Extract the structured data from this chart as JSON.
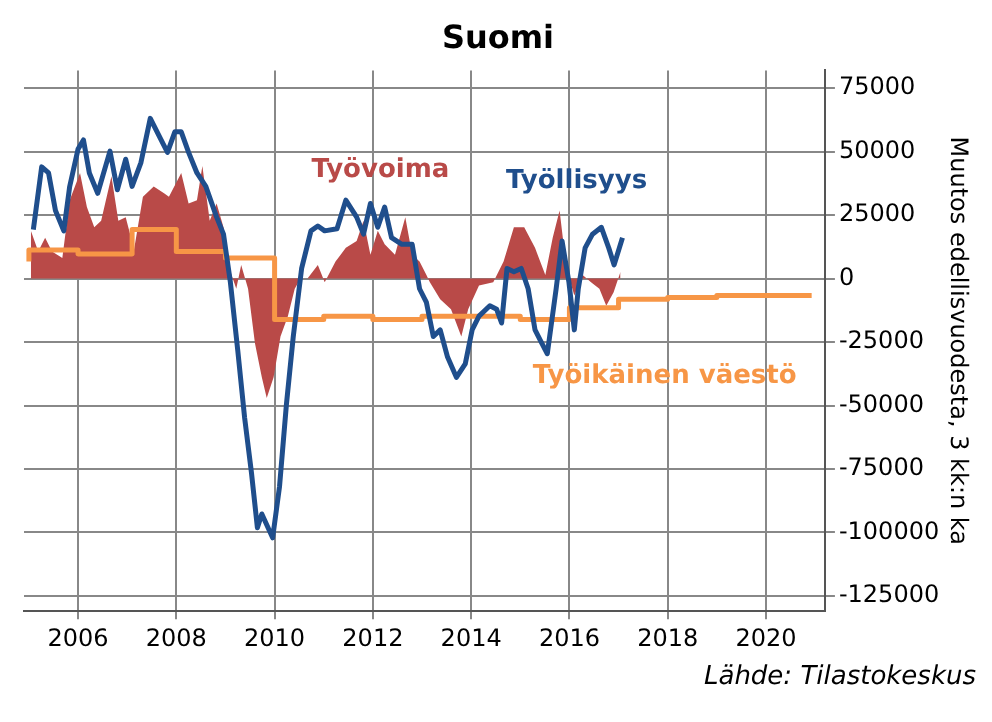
{
  "chart_data": {
    "type": "line",
    "title": "Suomi",
    "ylabel": "Muutos edellisvuodesta, 3 kk:n ka",
    "annotations": [
      "Lähde: Tilastokeskus"
    ],
    "xlim": [
      2004.9,
      2021.2
    ],
    "xticks": [
      2006,
      2008,
      2010,
      2012,
      2014,
      2016,
      2018,
      2020
    ],
    "ylim": [
      -131000,
      82000
    ],
    "yticks": [
      75000,
      50000,
      25000,
      0,
      -25000,
      -50000,
      -75000,
      -100000,
      -125000
    ],
    "grid": true,
    "legend": false,
    "marker": "none",
    "series": [
      {
        "name": "Työvoima",
        "type": "area",
        "color": "#b94a48",
        "x": [
          2005.04,
          2005.19,
          2005.33,
          2005.47,
          2005.68,
          2005.83,
          2006.04,
          2006.18,
          2006.33,
          2006.47,
          2006.68,
          2006.82,
          2006.97,
          2007.14,
          2007.32,
          2007.54,
          2007.75,
          2007.85,
          2008.1,
          2008.25,
          2008.42,
          2008.53,
          2008.68,
          2008.82,
          2008.96,
          2009.08,
          2009.22,
          2009.32,
          2009.46,
          2009.6,
          2009.74,
          2009.84,
          2009.98,
          2010.12,
          2010.27,
          2010.41,
          2010.53,
          2010.67,
          2010.88,
          2011.02,
          2011.24,
          2011.45,
          2011.67,
          2011.81,
          2011.95,
          2012.1,
          2012.24,
          2012.45,
          2012.66,
          2012.8,
          2012.95,
          2013.09,
          2013.16,
          2013.37,
          2013.59,
          2013.8,
          2013.94,
          2014.16,
          2014.45,
          2014.66,
          2014.87,
          2015.08,
          2015.3,
          2015.51,
          2015.66,
          2015.8,
          2015.94,
          2016.1,
          2016.27,
          2016.44,
          2016.61,
          2016.75,
          2016.9,
          2017.04
        ],
        "values": [
          18800,
          10700,
          16100,
          10700,
          8100,
          30900,
          41600,
          28200,
          20200,
          22800,
          40300,
          22800,
          24200,
          11500,
          32200,
          36300,
          33600,
          32200,
          41600,
          29600,
          30900,
          44300,
          22800,
          29600,
          20200,
          4000,
          -4000,
          5400,
          -4000,
          -25500,
          -38900,
          -47000,
          -38900,
          -22800,
          -14800,
          -4000,
          0,
          0,
          5400,
          -1400,
          6700,
          12100,
          14800,
          22800,
          9400,
          18800,
          13500,
          9400,
          24200,
          9400,
          6700,
          1400,
          -1400,
          -8100,
          -12100,
          -22800,
          -12100,
          -2700,
          -1400,
          6700,
          20200,
          20200,
          12100,
          1400,
          16100,
          26800,
          4000,
          -6700,
          1400,
          -1400,
          -4000,
          -10700,
          -5400,
          2700
        ]
      },
      {
        "name": "Työikäinen väestö",
        "type": "step",
        "color": "#f79646",
        "x": [
          2005.0,
          2006.0,
          2007.1,
          2008.0,
          2009.0,
          2010.0,
          2011.0,
          2012.0,
          2013.0,
          2015.0,
          2016.0,
          2017.0,
          2018.0,
          2019.0,
          2020.0,
          2020.93
        ],
        "values": [
          6700,
          11300,
          9700,
          19300,
          10700,
          8100,
          -16100,
          -14800,
          -16100,
          -14800,
          -16100,
          -11500,
          -8100,
          -7400,
          -6700,
          -6700
        ]
      },
      {
        "name": "Työllisyys",
        "type": "line",
        "color": "#1f4e8c",
        "x": [
          2005.09,
          2005.26,
          2005.4,
          2005.54,
          2005.71,
          2005.83,
          2006.0,
          2006.11,
          2006.23,
          2006.4,
          2006.65,
          2006.8,
          2006.97,
          2007.1,
          2007.28,
          2007.47,
          2007.68,
          2007.82,
          2007.97,
          2008.1,
          2008.25,
          2008.42,
          2008.6,
          2008.82,
          2008.96,
          2009.1,
          2009.25,
          2009.39,
          2009.53,
          2009.65,
          2009.74,
          2009.96,
          2010.1,
          2010.24,
          2010.38,
          2010.55,
          2010.74,
          2010.88,
          2011.02,
          2011.27,
          2011.45,
          2011.67,
          2011.81,
          2011.95,
          2012.1,
          2012.24,
          2012.38,
          2012.59,
          2012.8,
          2012.95,
          2013.09,
          2013.23,
          2013.37,
          2013.52,
          2013.7,
          2013.88,
          2014.02,
          2014.16,
          2014.38,
          2014.52,
          2014.62,
          2014.73,
          2014.87,
          2015.02,
          2015.16,
          2015.3,
          2015.44,
          2015.55,
          2015.73,
          2015.85,
          2015.99,
          2016.1,
          2016.18,
          2016.32,
          2016.47,
          2016.65,
          2016.8,
          2016.91,
          2017.08
        ],
        "values": [
          19300,
          44000,
          41600,
          26800,
          18800,
          36300,
          51000,
          54600,
          41600,
          33600,
          50200,
          35000,
          47000,
          36300,
          45700,
          63100,
          55000,
          49700,
          57800,
          57800,
          49700,
          41600,
          36300,
          24200,
          17500,
          -1400,
          -28200,
          -54800,
          -76600,
          -98100,
          -92700,
          -102100,
          -82000,
          -49700,
          -22800,
          4000,
          18800,
          20700,
          18800,
          19600,
          30900,
          24200,
          17500,
          29600,
          20200,
          28200,
          16100,
          13500,
          13500,
          -4000,
          -9400,
          -22800,
          -20200,
          -30900,
          -38900,
          -33600,
          -20200,
          -14800,
          -10700,
          -12100,
          -17500,
          4000,
          2700,
          4000,
          -4000,
          -20200,
          -25500,
          -29600,
          -4000,
          14800,
          -1400,
          -20200,
          -4000,
          12100,
          17500,
          20200,
          12100,
          5400,
          16100
        ]
      }
    ]
  }
}
